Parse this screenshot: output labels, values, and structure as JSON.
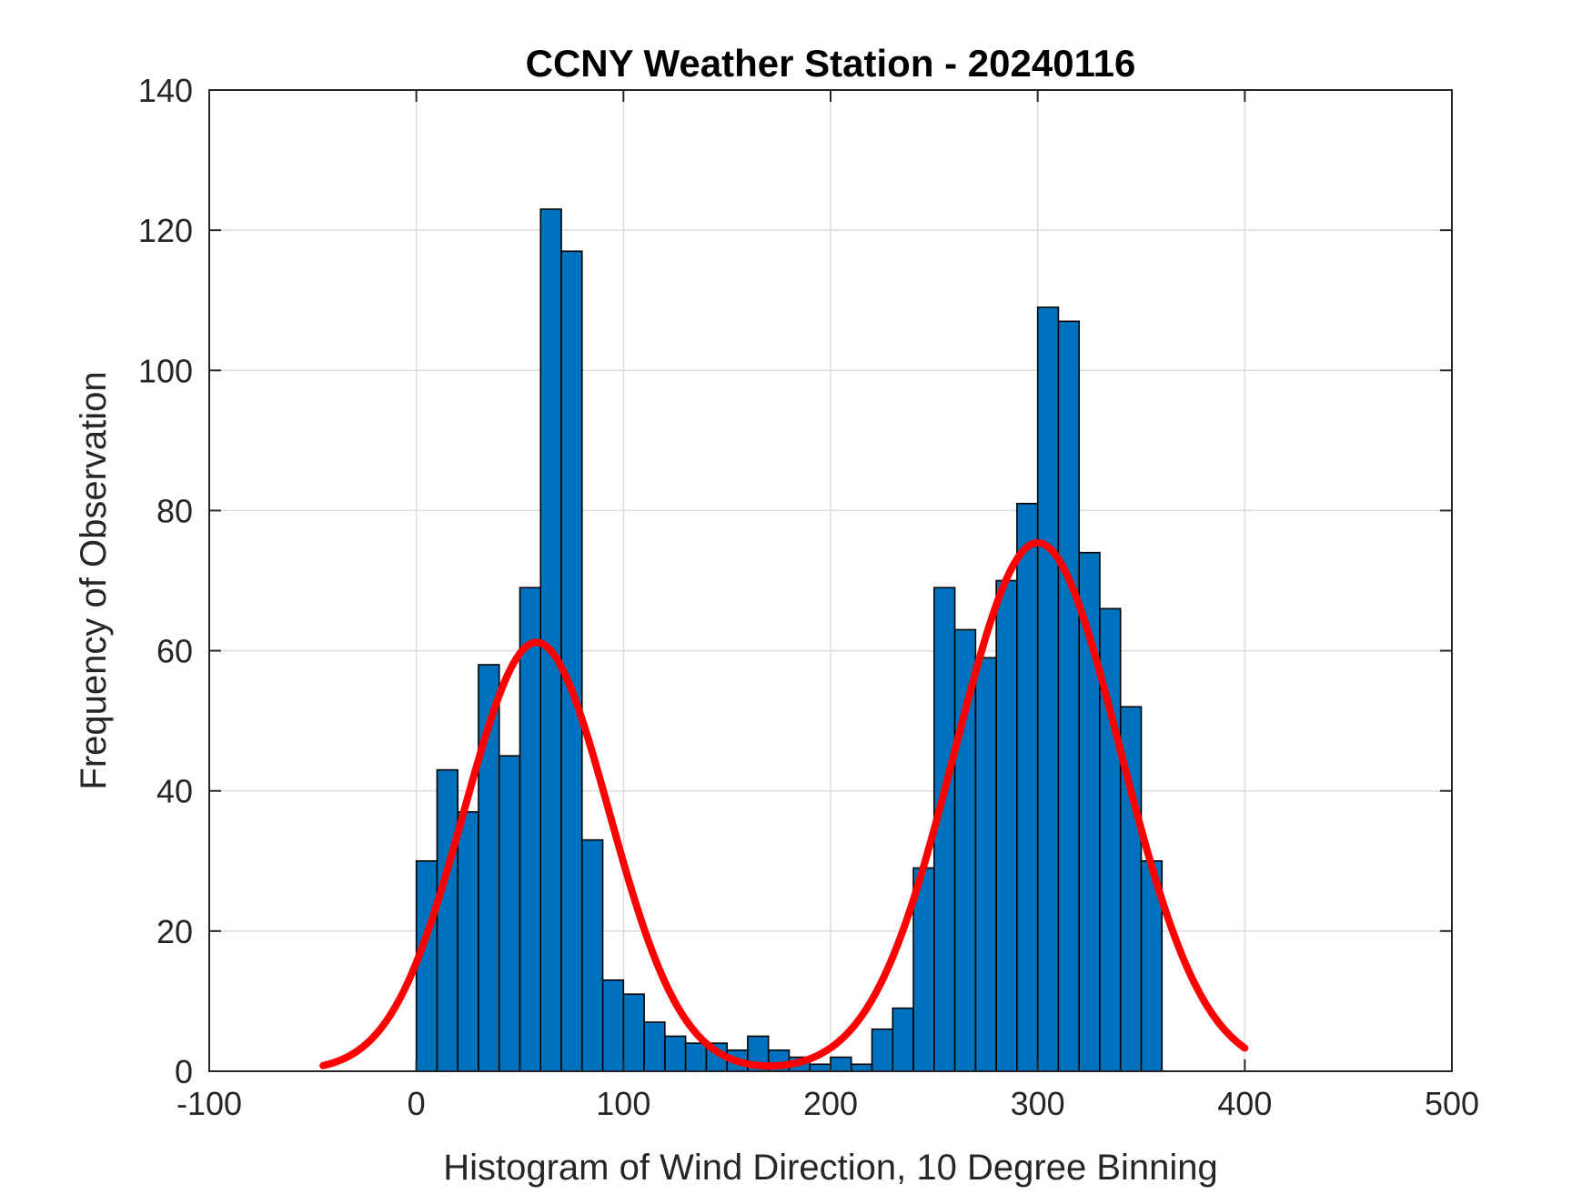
{
  "chart_data": {
    "type": "bar",
    "title": "CCNY Weather Station - 20240116",
    "xlabel": "Histogram of Wind Direction, 10 Degree Binning",
    "ylabel": "Frequency of Observation",
    "xlim": [
      -100,
      500
    ],
    "ylim": [
      0,
      140
    ],
    "xticks": [
      -100,
      0,
      100,
      200,
      300,
      400,
      500
    ],
    "yticks": [
      0,
      20,
      40,
      60,
      80,
      100,
      120,
      140
    ],
    "grid": true,
    "bin_width": 10,
    "bin_edges_start": 0,
    "values": [
      30,
      43,
      37,
      58,
      45,
      69,
      123,
      117,
      33,
      13,
      11,
      7,
      5,
      4,
      4,
      3,
      5,
      3,
      2,
      1,
      2,
      1,
      6,
      9,
      29,
      69,
      63,
      59,
      70,
      81,
      109,
      107,
      74,
      66,
      52,
      30
    ],
    "fit_curve": {
      "name": "fitted distribution",
      "color": "#ff0000",
      "x_range": [
        -45,
        400
      ],
      "components": [
        {
          "amplitude": 61.2,
          "mean": 58,
          "sigma": 35
        },
        {
          "amplitude": 75.4,
          "mean": 300,
          "sigma": 40
        }
      ],
      "baseline": 0
    },
    "colors": {
      "bar": "#0072bd",
      "edge": "#000000",
      "curve": "#ff0000"
    }
  }
}
